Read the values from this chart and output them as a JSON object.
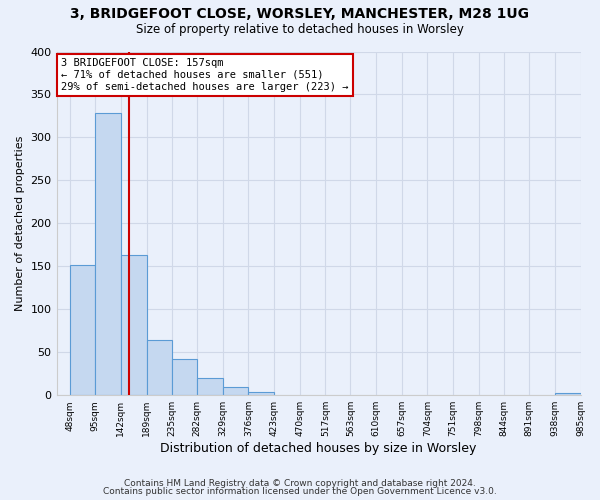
{
  "title": "3, BRIDGEFOOT CLOSE, WORSLEY, MANCHESTER, M28 1UG",
  "subtitle": "Size of property relative to detached houses in Worsley",
  "xlabel": "Distribution of detached houses by size in Worsley",
  "ylabel": "Number of detached properties",
  "bin_edges": [
    48,
    95,
    142,
    189,
    235,
    282,
    329,
    376,
    423,
    470,
    517,
    563,
    610,
    657,
    704,
    751,
    798,
    844,
    891,
    938,
    985
  ],
  "bin_labels": [
    "48sqm",
    "95sqm",
    "142sqm",
    "189sqm",
    "235sqm",
    "282sqm",
    "329sqm",
    "376sqm",
    "423sqm",
    "470sqm",
    "517sqm",
    "563sqm",
    "610sqm",
    "657sqm",
    "704sqm",
    "751sqm",
    "798sqm",
    "844sqm",
    "891sqm",
    "938sqm",
    "985sqm"
  ],
  "bar_heights": [
    151,
    328,
    163,
    64,
    42,
    20,
    9,
    4,
    0,
    0,
    0,
    0,
    0,
    0,
    0,
    0,
    0,
    0,
    0,
    3
  ],
  "bar_color": "#c5d8f0",
  "bar_edge_color": "#5b9bd5",
  "property_line_x": 157,
  "property_line_color": "#cc0000",
  "annotation_text": "3 BRIDGEFOOT CLOSE: 157sqm\n← 71% of detached houses are smaller (551)\n29% of semi-detached houses are larger (223) →",
  "annotation_box_color": "#ffffff",
  "annotation_box_edge": "#cc0000",
  "ylim": [
    0,
    400
  ],
  "yticks": [
    0,
    50,
    100,
    150,
    200,
    250,
    300,
    350,
    400
  ],
  "xlim": [
    24,
    985
  ],
  "background_color": "#eaf0fb",
  "grid_color": "#d0d8e8",
  "footer_line1": "Contains HM Land Registry data © Crown copyright and database right 2024.",
  "footer_line2": "Contains public sector information licensed under the Open Government Licence v3.0."
}
